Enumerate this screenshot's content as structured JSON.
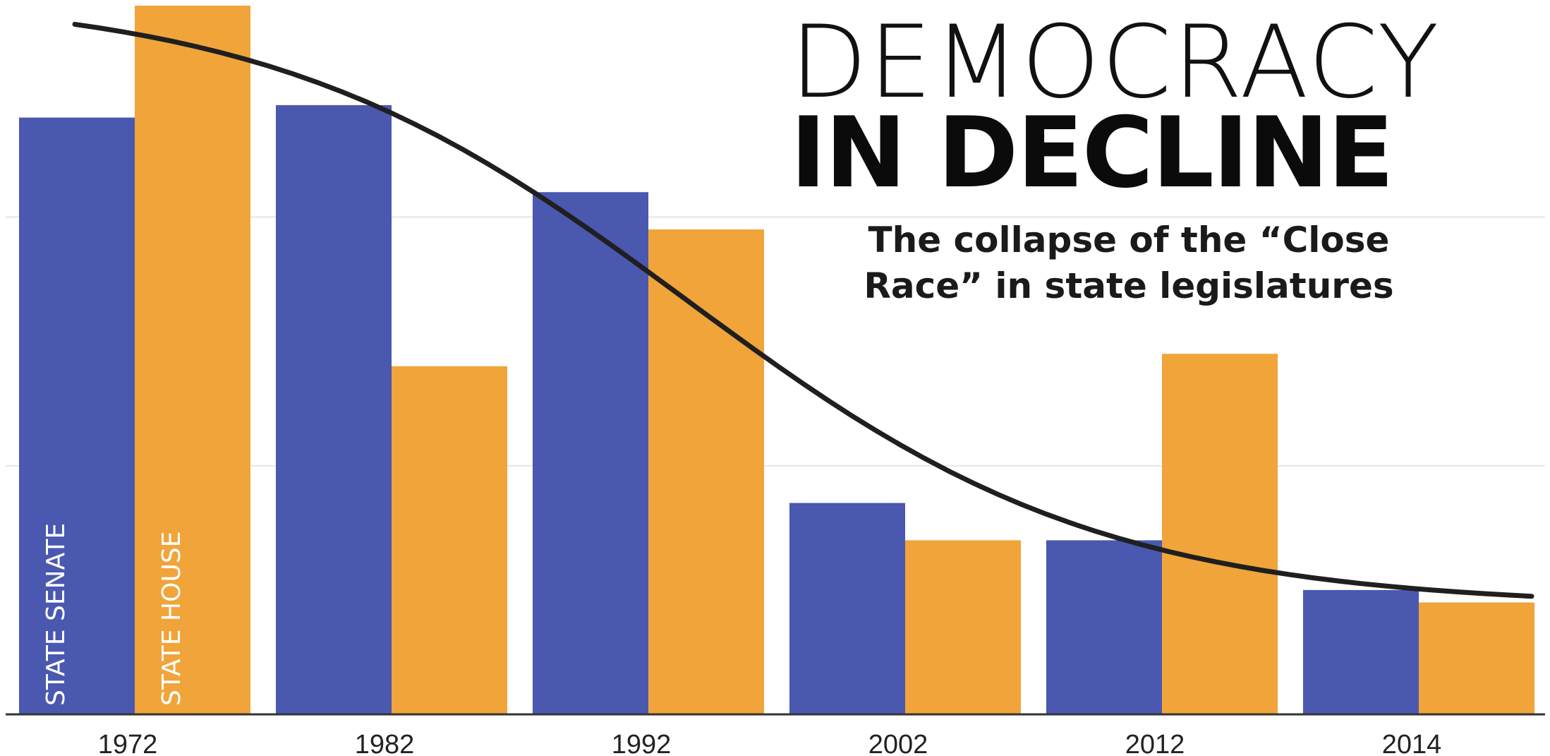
{
  "header": {
    "title_line1": "DEMOCRACY",
    "title_line2": "IN DECLINE",
    "subtitle": "The collapse of the “Close Race” in state legislatures"
  },
  "colors": {
    "senate": "#4a58b0",
    "house": "#f0a43a",
    "trend": "#1f1f1f",
    "grid": "#e6e6e6",
    "axis": "#333333"
  },
  "chart_data": {
    "type": "bar",
    "categories": [
      "1972",
      "1982",
      "1992",
      "2002",
      "2012",
      "2014"
    ],
    "series": [
      {
        "name": "STATE SENATE",
        "values": [
          48,
          49,
          42,
          17,
          14,
          10
        ]
      },
      {
        "name": "STATE HOUSE",
        "values": [
          57,
          28,
          39,
          14,
          29,
          9
        ]
      }
    ],
    "trendline": true,
    "ylim": [
      0,
      57
    ],
    "gridlines": [
      20,
      40
    ],
    "legend": "vertical labels inside first group of bars"
  }
}
